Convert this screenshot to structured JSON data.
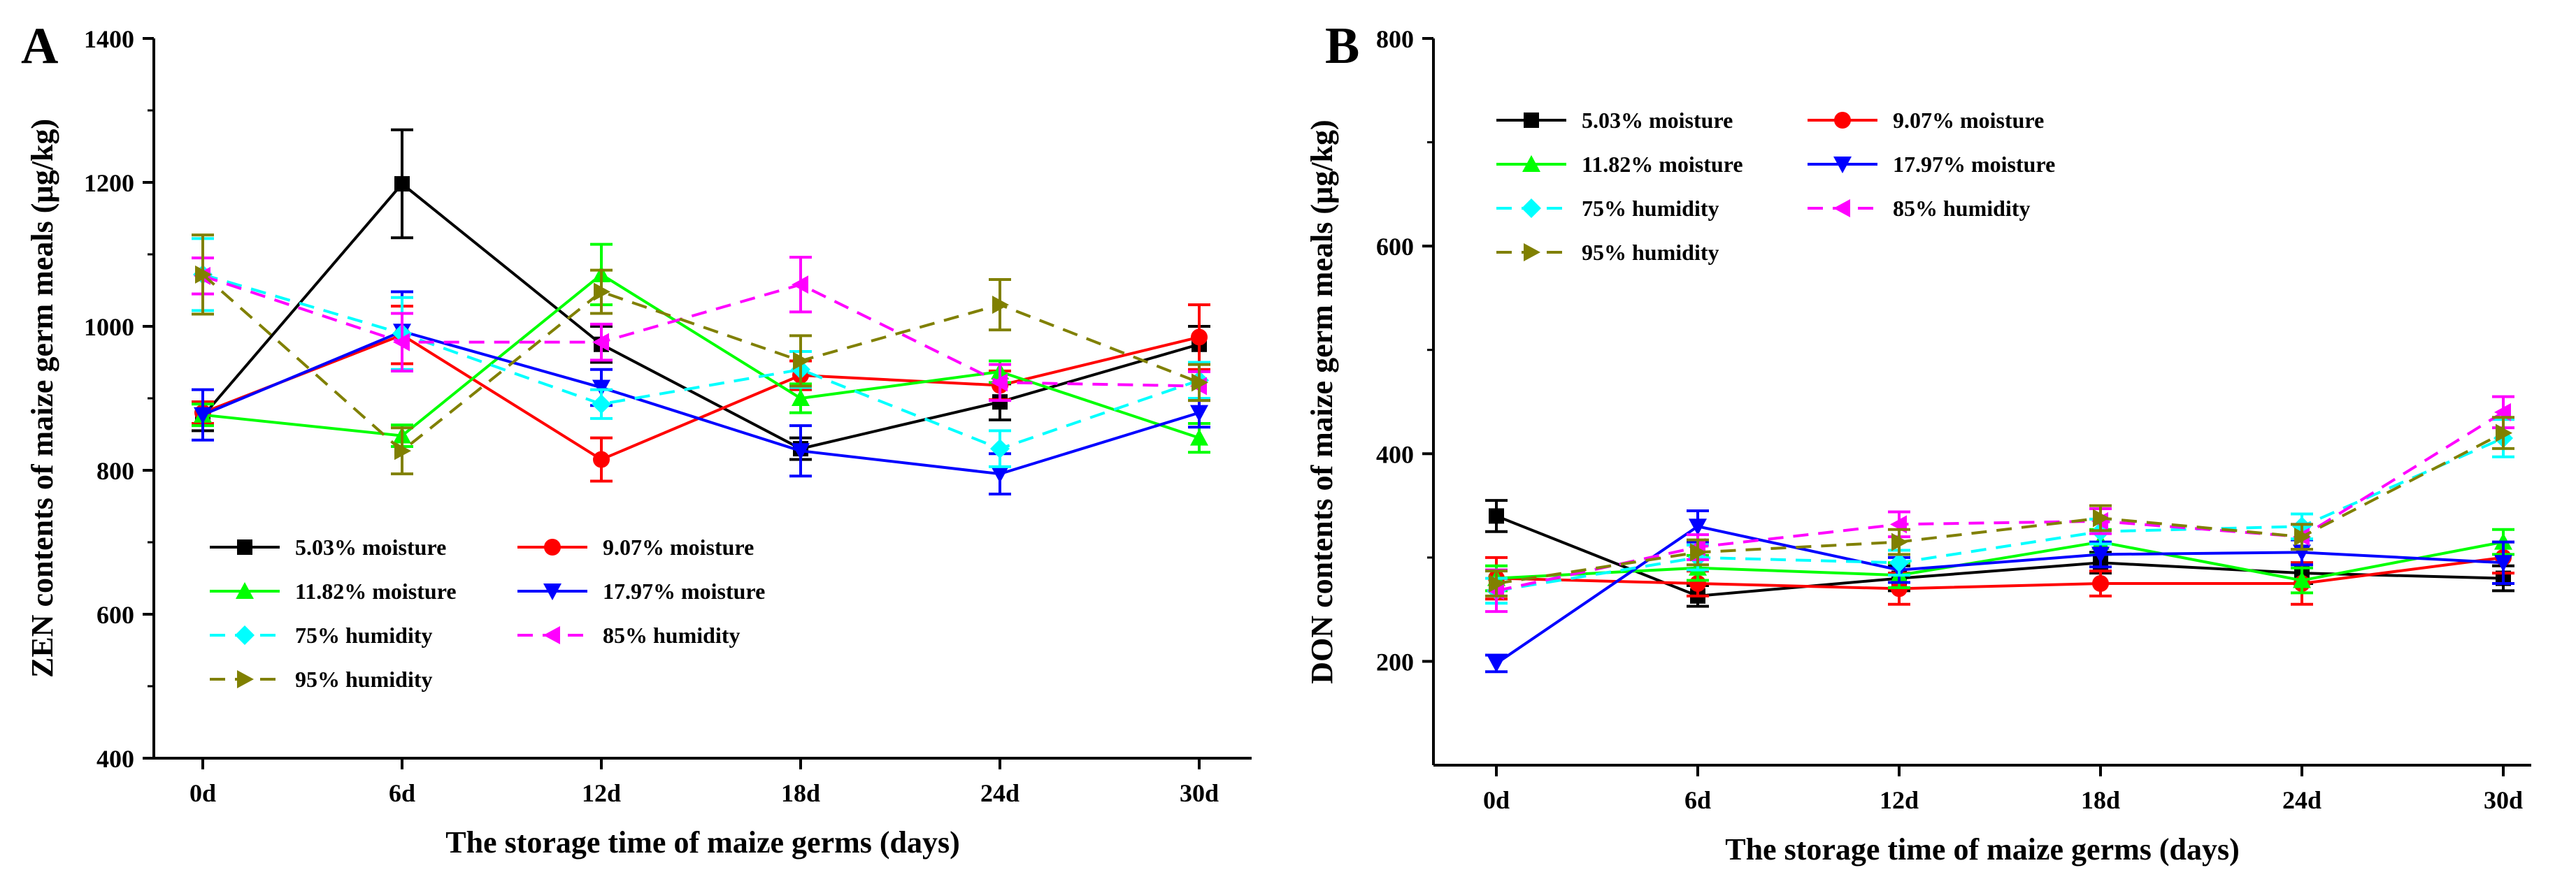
{
  "chart_data": [
    {
      "panel_label": "A",
      "type": "line",
      "title": "",
      "xlabel": "The storage time of maize germs (days)",
      "ylabel": "ZEN contents of maize germ meals (µg/kg)",
      "categories": [
        "0d",
        "6d",
        "12d",
        "18d",
        "24d",
        "30d"
      ],
      "ylim": [
        400,
        1400
      ],
      "yticks": [
        400,
        600,
        800,
        1000,
        1200,
        1400
      ],
      "legend_position": "bottom-left",
      "series": [
        {
          "name": "5.03% moisture",
          "color": "#000000",
          "marker": "square",
          "dash": "solid",
          "values": [
            875,
            1198,
            975,
            830,
            895,
            975
          ],
          "errors": [
            20,
            75,
            25,
            15,
            25,
            25
          ]
        },
        {
          "name": "9.07%  moisture",
          "color": "#ff0000",
          "marker": "circle",
          "dash": "solid",
          "values": [
            880,
            988,
            815,
            932,
            918,
            985
          ],
          "errors": [
            15,
            40,
            30,
            20,
            20,
            45
          ]
        },
        {
          "name": "11.82%  moisture",
          "color": "#00ff00",
          "marker": "triangle-up",
          "dash": "solid",
          "values": [
            877,
            848,
            1072,
            900,
            937,
            845
          ],
          "errors": [
            15,
            15,
            42,
            20,
            15,
            20
          ]
        },
        {
          "name": "17.97%  moisture",
          "color": "#0000ff",
          "marker": "triangle-down",
          "dash": "solid",
          "values": [
            877,
            993,
            915,
            827,
            795,
            880
          ],
          "errors": [
            35,
            55,
            25,
            35,
            28,
            20
          ]
        },
        {
          "name": "75% humidity",
          "color": "#00ffff",
          "marker": "diamond",
          "dash": "dash",
          "values": [
            1072,
            990,
            892,
            940,
            830,
            925
          ],
          "errors": [
            50,
            50,
            20,
            25,
            25,
            25
          ]
        },
        {
          "name": "85% humidity",
          "color": "#ff00ff",
          "marker": "triangle-left",
          "dash": "dash",
          "values": [
            1070,
            978,
            978,
            1058,
            922,
            917
          ],
          "errors": [
            25,
            40,
            25,
            38,
            25,
            20
          ]
        },
        {
          "name": "95% humidity",
          "color": "#808000",
          "marker": "triangle-right",
          "dash": "dash",
          "values": [
            1072,
            827,
            1048,
            952,
            1030,
            922
          ],
          "errors": [
            55,
            32,
            30,
            35,
            35,
            25
          ]
        }
      ]
    },
    {
      "panel_label": "B",
      "type": "line",
      "title": "",
      "xlabel": "The storage time of maize germs (days)",
      "ylabel": "DON contents of maize germ meals (µg/kg)",
      "categories": [
        "0d",
        "6d",
        "12d",
        "18d",
        "24d",
        "30d"
      ],
      "ylim": [
        100,
        800
      ],
      "yticks": [
        200,
        400,
        600,
        800
      ],
      "legend_position": "top-left",
      "series": [
        {
          "name": "5.03% moisture",
          "color": "#000000",
          "marker": "square",
          "dash": "solid",
          "values": [
            340,
            263,
            280,
            295,
            285,
            280
          ],
          "errors": [
            15,
            10,
            12,
            10,
            10,
            12
          ]
        },
        {
          "name": "9.07%  moisture",
          "color": "#ff0000",
          "marker": "circle",
          "dash": "solid",
          "values": [
            280,
            275,
            270,
            275,
            275,
            300
          ],
          "errors": [
            20,
            12,
            15,
            12,
            20,
            15
          ]
        },
        {
          "name": "11.82%  moisture",
          "color": "#00ff00",
          "marker": "triangle-up",
          "dash": "solid",
          "values": [
            280,
            290,
            283,
            315,
            278,
            315
          ],
          "errors": [
            12,
            12,
            12,
            12,
            12,
            12
          ]
        },
        {
          "name": "17.97%  moisture",
          "color": "#0000ff",
          "marker": "triangle-down",
          "dash": "solid",
          "values": [
            198,
            330,
            288,
            303,
            305,
            295
          ],
          "errors": [
            8,
            15,
            12,
            12,
            12,
            20
          ]
        },
        {
          "name": "75% humidity",
          "color": "#00ffff",
          "marker": "diamond",
          "dash": "dash",
          "values": [
            268,
            300,
            295,
            325,
            330,
            415
          ],
          "errors": [
            12,
            12,
            12,
            12,
            12,
            18
          ]
        },
        {
          "name": "85% humidity",
          "color": "#ff00ff",
          "marker": "triangle-left",
          "dash": "dash",
          "values": [
            268,
            310,
            332,
            335,
            320,
            440
          ],
          "errors": [
            20,
            12,
            12,
            12,
            12,
            15
          ]
        },
        {
          "name": "95% humidity",
          "color": "#808000",
          "marker": "triangle-right",
          "dash": "dash",
          "values": [
            275,
            305,
            315,
            338,
            320,
            420
          ],
          "errors": [
            12,
            12,
            12,
            12,
            12,
            15
          ]
        }
      ]
    }
  ]
}
